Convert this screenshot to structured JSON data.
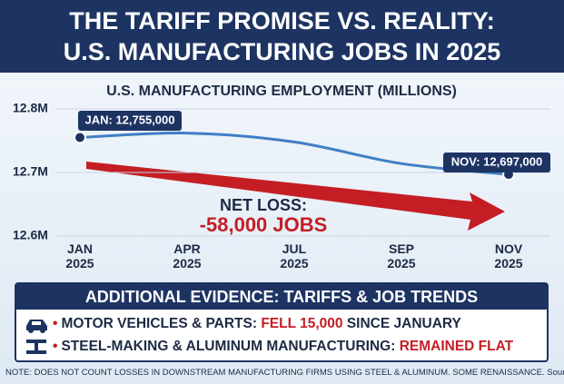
{
  "header": {
    "title": "THE TARIFF PROMISE VS. REALITY:",
    "subtitle": "U.S. MANUFACTURING JOBS IN 2025"
  },
  "chart_data": {
    "type": "line",
    "title": "U.S. MANUFACTURING EMPLOYMENT (MILLIONS)",
    "categories": [
      "JAN 2025",
      "APR 2025",
      "JUL 2025",
      "SEP 2025",
      "NOV 2025"
    ],
    "series": [
      {
        "name": "Manufacturing employment",
        "color": "#3f7fc4",
        "values": [
          12.755,
          12.762,
          12.748,
          12.714,
          12.697
        ]
      }
    ],
    "ylim": [
      12.6,
      12.8
    ],
    "yticks": [
      {
        "value": 12.6,
        "label": "12.6M"
      },
      {
        "value": 12.7,
        "label": "12.7M"
      },
      {
        "value": 12.8,
        "label": "12.8M"
      }
    ],
    "annotations": [
      "JAN: 12,755,000",
      "NOV: 12,697,000",
      "NET LOSS:",
      "-58,000 JOBS"
    ]
  },
  "evidence": {
    "title": "ADDITIONAL EVIDENCE: TARIFFS & JOB TRENDS",
    "items": [
      [
        "MOTOR VEHICLES & PARTS:",
        "FELL 15,000",
        "SINCE JANUARY"
      ],
      [
        "STEEL-MAKING & ALUMINUM MANUFACTURING:",
        "REMAINED FLAT"
      ]
    ]
  },
  "footnote": "NOTE: DOES NOT COUNT LOSSES IN DOWNSTREAM MANUFACTURING FIRMS USING STEEL & ALUMINUM. SOME RENAISSANCE.  Source: BLS"
}
